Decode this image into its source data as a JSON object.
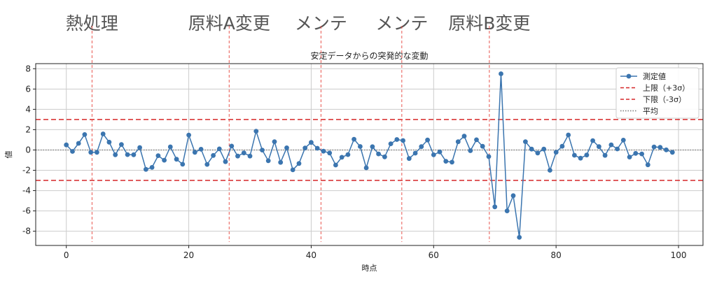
{
  "chart_data": {
    "type": "line",
    "title": "安定データからの突発的な変動",
    "xlabel": "時点",
    "ylabel": "値",
    "xlim": [
      -5,
      104
    ],
    "ylim": [
      -9.4,
      8.5
    ],
    "xticks": [
      0,
      20,
      40,
      60,
      80,
      100
    ],
    "yticks": [
      -8,
      -6,
      -4,
      -2,
      0,
      2,
      4,
      6,
      8
    ],
    "grid": true,
    "legend_position": "top-right",
    "series": [
      {
        "name": "測定値",
        "color": "#3b75af",
        "marker": "circle",
        "x": [
          0,
          1,
          2,
          3,
          4,
          5,
          6,
          7,
          8,
          9,
          10,
          11,
          12,
          13,
          14,
          15,
          16,
          17,
          18,
          19,
          20,
          21,
          22,
          23,
          24,
          25,
          26,
          27,
          28,
          29,
          30,
          31,
          32,
          33,
          34,
          35,
          36,
          37,
          38,
          39,
          40,
          41,
          42,
          43,
          44,
          45,
          46,
          47,
          48,
          49,
          50,
          51,
          52,
          53,
          54,
          55,
          56,
          57,
          58,
          59,
          60,
          61,
          62,
          63,
          64,
          65,
          66,
          67,
          68,
          69,
          70,
          71,
          72,
          73,
          74,
          75,
          76,
          77,
          78,
          79,
          80,
          81,
          82,
          83,
          84,
          85,
          86,
          87,
          88,
          89,
          90,
          91,
          92,
          93,
          94,
          95,
          96,
          97,
          98,
          99
        ],
        "values": [
          0.5,
          -0.14,
          0.65,
          1.52,
          -0.23,
          -0.23,
          1.58,
          0.77,
          -0.47,
          0.54,
          -0.46,
          -0.47,
          0.24,
          -1.91,
          -1.72,
          -0.56,
          -1.01,
          0.31,
          -0.91,
          -1.41,
          1.47,
          -0.23,
          0.07,
          -1.42,
          -0.54,
          0.11,
          -1.15,
          0.38,
          -0.6,
          -0.29,
          -0.6,
          1.85,
          -0.01,
          -1.06,
          0.82,
          -1.22,
          0.21,
          -1.96,
          -1.33,
          0.2,
          0.74,
          0.17,
          -0.12,
          -0.3,
          -1.48,
          -0.72,
          -0.46,
          1.06,
          0.34,
          -1.76,
          0.32,
          -0.39,
          -0.68,
          0.61,
          1.03,
          0.93,
          -0.84,
          -0.31,
          0.33,
          0.98,
          -0.48,
          -0.19,
          -1.11,
          -1.2,
          0.81,
          1.36,
          -0.07,
          1.0,
          0.36,
          -0.65,
          -5.6,
          7.5,
          -6.0,
          -4.5,
          -8.6,
          0.82,
          0.09,
          -0.3,
          0.09,
          -2.0,
          -0.22,
          0.36,
          1.48,
          -0.52,
          -0.81,
          -0.5,
          0.92,
          0.33,
          -0.53,
          0.51,
          0.1,
          0.97,
          -0.7,
          -0.33,
          -0.39,
          -1.46,
          0.3,
          0.26,
          0.01,
          -0.23
        ]
      }
    ],
    "reference_lines": [
      {
        "name": "上限（+3σ）",
        "y": 3.0,
        "color": "#d62728",
        "style": "dashed"
      },
      {
        "name": "下限（-3σ）",
        "y": -3.0,
        "color": "#d62728",
        "style": "dashed"
      },
      {
        "name": "平均",
        "y": 0.0,
        "color": "#777777",
        "style": "dotted"
      }
    ],
    "events": [
      {
        "x": 4.2,
        "label": "熱処理"
      },
      {
        "x": 26.6,
        "label": "原料A変更"
      },
      {
        "x": 41.6,
        "label": "メンテ"
      },
      {
        "x": 54.8,
        "label": "メンテ"
      },
      {
        "x": 69.1,
        "label": "原料B変更"
      }
    ]
  }
}
